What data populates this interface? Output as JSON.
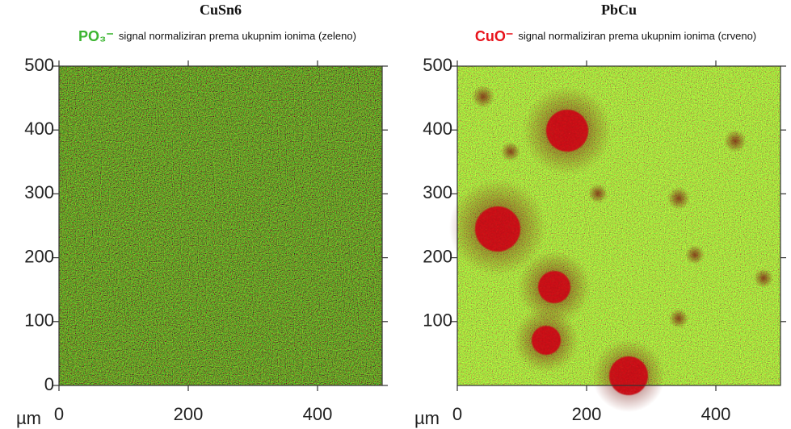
{
  "chart_data": [
    {
      "type": "heatmap",
      "title": "CuSn6",
      "ion_label": "PO₃⁻",
      "ion_color": "#3cb531",
      "subtitle": "signal normaliziran prema ukupnim ionima (zeleno)",
      "x_unit": "µm",
      "xlim": [
        0,
        500
      ],
      "xticks": [
        0,
        200,
        400
      ],
      "ylim": [
        0,
        500
      ],
      "yticks": [
        0,
        100,
        200,
        300,
        400,
        500
      ]
    },
    {
      "type": "heatmap",
      "title": "PbCu",
      "ion_label": "CuO⁻",
      "ion_color": "#e8141c",
      "subtitle": "signal normaliziran prema ukupnim ionima (crveno)",
      "x_unit": "µm",
      "xlim": [
        0,
        500
      ],
      "xticks": [
        0,
        200,
        400
      ],
      "ylim": [
        0,
        500
      ],
      "yticks": [
        100,
        200,
        300,
        400,
        500
      ]
    }
  ]
}
